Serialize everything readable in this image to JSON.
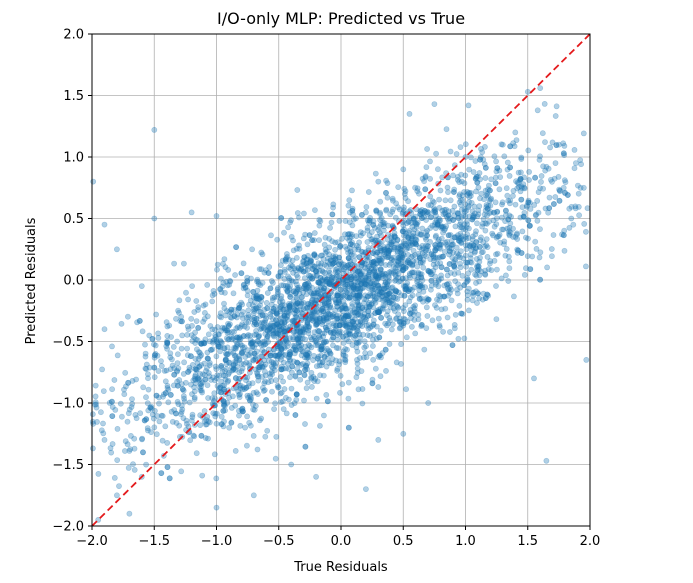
{
  "chart_data": {
    "type": "scatter",
    "title": "I/O-only MLP: Predicted vs True",
    "xlabel": "True Residuals",
    "ylabel": "Predicted Residuals",
    "xlim": [
      -2.0,
      2.0
    ],
    "ylim": [
      -2.0,
      2.0
    ],
    "x_ticks": [
      "−2.0",
      "−1.5",
      "−1.0",
      "−0.5",
      "0.0",
      "0.5",
      "1.0",
      "1.5",
      "2.0"
    ],
    "y_ticks": [
      "−2.0",
      "−1.5",
      "−1.0",
      "−0.5",
      "0.0",
      "0.5",
      "1.0",
      "1.5",
      "2.0"
    ],
    "grid": true,
    "point_color": "#1f77b4",
    "point_alpha": 0.35,
    "reference_line": {
      "style": "dashed",
      "color": "#e41a1c",
      "from": [
        -2.0,
        -2.0
      ],
      "to": [
        2.0,
        2.0
      ]
    },
    "series": [
      {
        "distribution": {
          "x_range": [
            -2.0,
            2.0
          ],
          "y_fit_slope": 0.5,
          "y_fit_intercept": -0.15,
          "y_spread": 0.32
        },
        "points": [
          [
            -1.5,
            1.22
          ],
          [
            -1.99,
            0.8
          ],
          [
            1.6,
            1.56
          ],
          [
            1.58,
            1.38
          ],
          [
            1.5,
            1.53
          ],
          [
            1.75,
            1.1
          ],
          [
            1.4,
            1.2
          ],
          [
            1.3,
            1.1
          ],
          [
            0.55,
            1.35
          ],
          [
            0.75,
            1.43
          ],
          [
            1.55,
            -0.8
          ],
          [
            1.65,
            -1.47
          ],
          [
            1.97,
            -0.65
          ],
          [
            1.95,
            0.75
          ],
          [
            1.85,
            0.5
          ],
          [
            -1.9,
            -1.3
          ],
          [
            -1.8,
            -1.75
          ],
          [
            -1.6,
            -1.6
          ],
          [
            -1.7,
            -1.9
          ],
          [
            -1.95,
            -1.95
          ],
          [
            -1.2,
            0.55
          ],
          [
            -1.0,
            0.52
          ],
          [
            -1.5,
            0.5
          ],
          [
            -1.8,
            0.25
          ],
          [
            -1.9,
            0.45
          ],
          [
            0.2,
            0.55
          ],
          [
            0.3,
            0.8
          ],
          [
            0.5,
            0.9
          ],
          [
            1.0,
            1.0
          ],
          [
            0.9,
            0.85
          ],
          [
            -0.4,
            -1.5
          ],
          [
            -0.2,
            -1.6
          ],
          [
            0.2,
            -1.7
          ],
          [
            -0.7,
            -1.75
          ],
          [
            -1.0,
            -1.85
          ],
          [
            0.3,
            -1.3
          ],
          [
            0.5,
            -1.25
          ],
          [
            0.7,
            -1.0
          ],
          [
            -1.6,
            -0.05
          ],
          [
            -1.9,
            -0.4
          ]
        ]
      }
    ]
  }
}
